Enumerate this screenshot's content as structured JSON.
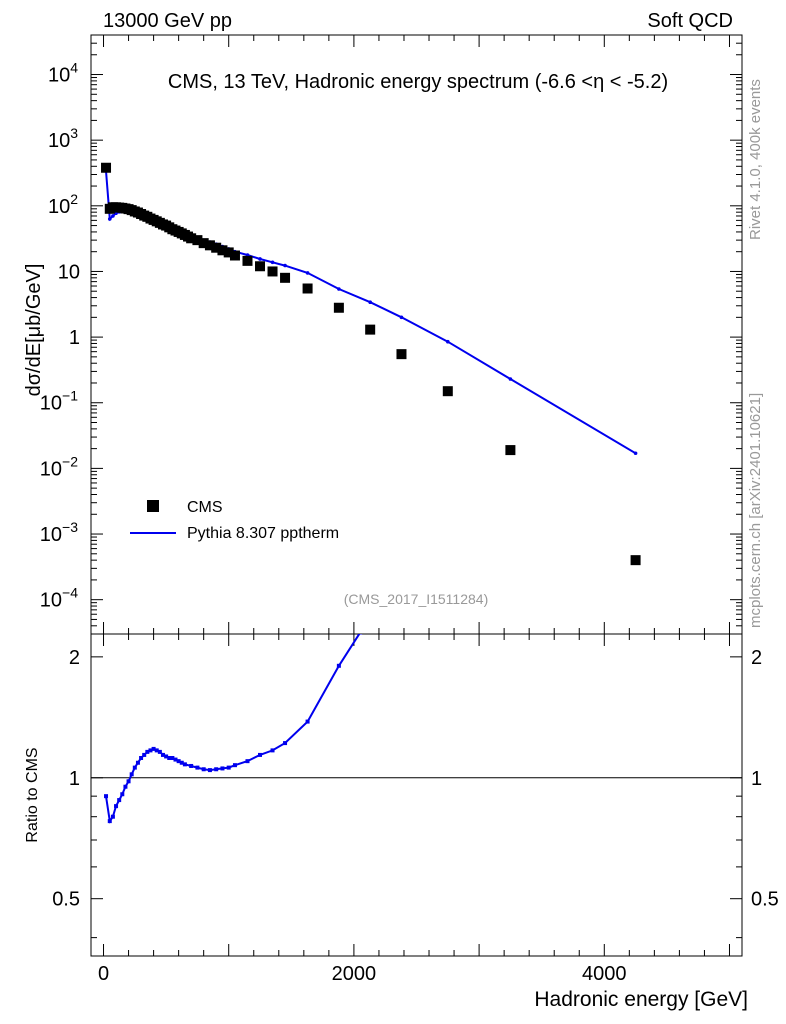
{
  "header": {
    "left": "13000 GeV pp",
    "right": "Soft QCD"
  },
  "side_labels": {
    "top": "Rivet 4.1.0,  400k events",
    "bottom": "mcplots.cern.ch [arXiv:2401.10621]"
  },
  "analysis_id": "(CMS_2017_I1511284)",
  "colors": {
    "mc": "#0000ee",
    "data": "#000000",
    "watermark": "#999999"
  },
  "chart_data": [
    {
      "type": "scatter",
      "title": "CMS, 13 TeV, Hadronic energy spectrum (-6.6 <η < -5.2)",
      "ylabel": "dσ/dE[μb/GeV]",
      "xlabel": "",
      "xlim": [
        -100,
        5100
      ],
      "ylim": [
        3e-05,
        40000
      ],
      "yscale": "log",
      "ytick_labels": [
        {
          "value": 10000,
          "base": "10",
          "exp": "4"
        },
        {
          "value": 1000,
          "base": "10",
          "exp": "3"
        },
        {
          "value": 100,
          "base": "10",
          "exp": "2"
        },
        {
          "value": 10,
          "base": "10",
          "exp": ""
        },
        {
          "value": 1,
          "base": "1",
          "exp": ""
        },
        {
          "value": 0.1,
          "base": "10",
          "exp": "−1"
        },
        {
          "value": 0.01,
          "base": "10",
          "exp": "−2"
        },
        {
          "value": 0.001,
          "base": "10",
          "exp": "−3"
        },
        {
          "value": 0.0001,
          "base": "10",
          "exp": "−4"
        }
      ],
      "legend": {
        "position": "lower-left",
        "entries": [
          {
            "label": "CMS",
            "marker": "square"
          },
          {
            "label": "Pythia 8.307 pptherm",
            "marker": "line"
          }
        ]
      },
      "series": [
        {
          "name": "CMS",
          "x": [
            20,
            50,
            75,
            100,
            125,
            150,
            175,
            200,
            225,
            250,
            275,
            300,
            325,
            350,
            375,
            400,
            425,
            450,
            475,
            500,
            525,
            550,
            575,
            600,
            625,
            650,
            675,
            700,
            750,
            800,
            850,
            900,
            950,
            1000,
            1050,
            1150,
            1250,
            1350,
            1450,
            1630,
            1880,
            2130,
            2380,
            2750,
            3250,
            4250
          ],
          "y": [
            380,
            90,
            95,
            95,
            94,
            93,
            91,
            89,
            86,
            82,
            79,
            75,
            71,
            68,
            64,
            61,
            58,
            55,
            52,
            50,
            47,
            44,
            42,
            40,
            38,
            36,
            34,
            32,
            30,
            27,
            25,
            23,
            21,
            19.5,
            17.5,
            14.5,
            12,
            10,
            8,
            5.5,
            2.8,
            1.3,
            0.55,
            0.15,
            0.019,
            0.0004
          ]
        },
        {
          "name": "Pythia 8.307 pptherm",
          "x": [
            20,
            50,
            75,
            100,
            125,
            150,
            175,
            200,
            225,
            250,
            275,
            300,
            325,
            350,
            375,
            400,
            425,
            450,
            475,
            500,
            525,
            550,
            575,
            600,
            625,
            650,
            675,
            700,
            750,
            800,
            850,
            900,
            950,
            1000,
            1050,
            1150,
            1250,
            1350,
            1450,
            1630,
            1880,
            2130,
            2380,
            2750,
            3250,
            4250
          ],
          "y": [
            340,
            63,
            70,
            77,
            81,
            84,
            85,
            85,
            84,
            82,
            80,
            78,
            76,
            73,
            70,
            67,
            64,
            61,
            58,
            56,
            53,
            50,
            47,
            45,
            43,
            40,
            38,
            36,
            33,
            30,
            28,
            26,
            24,
            22,
            20,
            17.8,
            15.5,
            13.8,
            12.3,
            9.5,
            5.4,
            3.4,
            2.0,
            0.85,
            0.23,
            0.017
          ]
        }
      ]
    },
    {
      "type": "line",
      "title": "",
      "ylabel": "Ratio to CMS",
      "xlabel": "Hadronic energy [GeV]",
      "xlim": [
        -100,
        5100
      ],
      "ylim": [
        0.36,
        2.28
      ],
      "yscale": "log",
      "xtick_labels": [
        {
          "value": 0,
          "label": "0"
        },
        {
          "value": 2000,
          "label": "2000"
        },
        {
          "value": 4000,
          "label": "4000"
        }
      ],
      "ytick_labels": [
        {
          "value": 2,
          "label": "2"
        },
        {
          "value": 1,
          "label": "1"
        },
        {
          "value": 0.5,
          "label": "0.5"
        }
      ],
      "reference_line": 1,
      "series": [
        {
          "name": "Pythia 8.307 pptherm / CMS",
          "x": [
            20,
            50,
            75,
            100,
            125,
            150,
            175,
            200,
            225,
            250,
            275,
            300,
            325,
            350,
            375,
            400,
            425,
            450,
            475,
            500,
            525,
            550,
            575,
            600,
            625,
            650,
            700,
            750,
            800,
            850,
            900,
            950,
            1000,
            1050,
            1150,
            1250,
            1350,
            1450,
            1630,
            1880,
            2050
          ],
          "y": [
            0.9,
            0.78,
            0.8,
            0.85,
            0.88,
            0.91,
            0.95,
            0.98,
            1.02,
            1.06,
            1.09,
            1.12,
            1.14,
            1.16,
            1.17,
            1.18,
            1.17,
            1.16,
            1.14,
            1.13,
            1.12,
            1.12,
            1.11,
            1.1,
            1.09,
            1.08,
            1.07,
            1.06,
            1.05,
            1.045,
            1.05,
            1.055,
            1.06,
            1.075,
            1.1,
            1.14,
            1.17,
            1.22,
            1.38,
            1.9,
            2.3
          ]
        }
      ]
    }
  ]
}
